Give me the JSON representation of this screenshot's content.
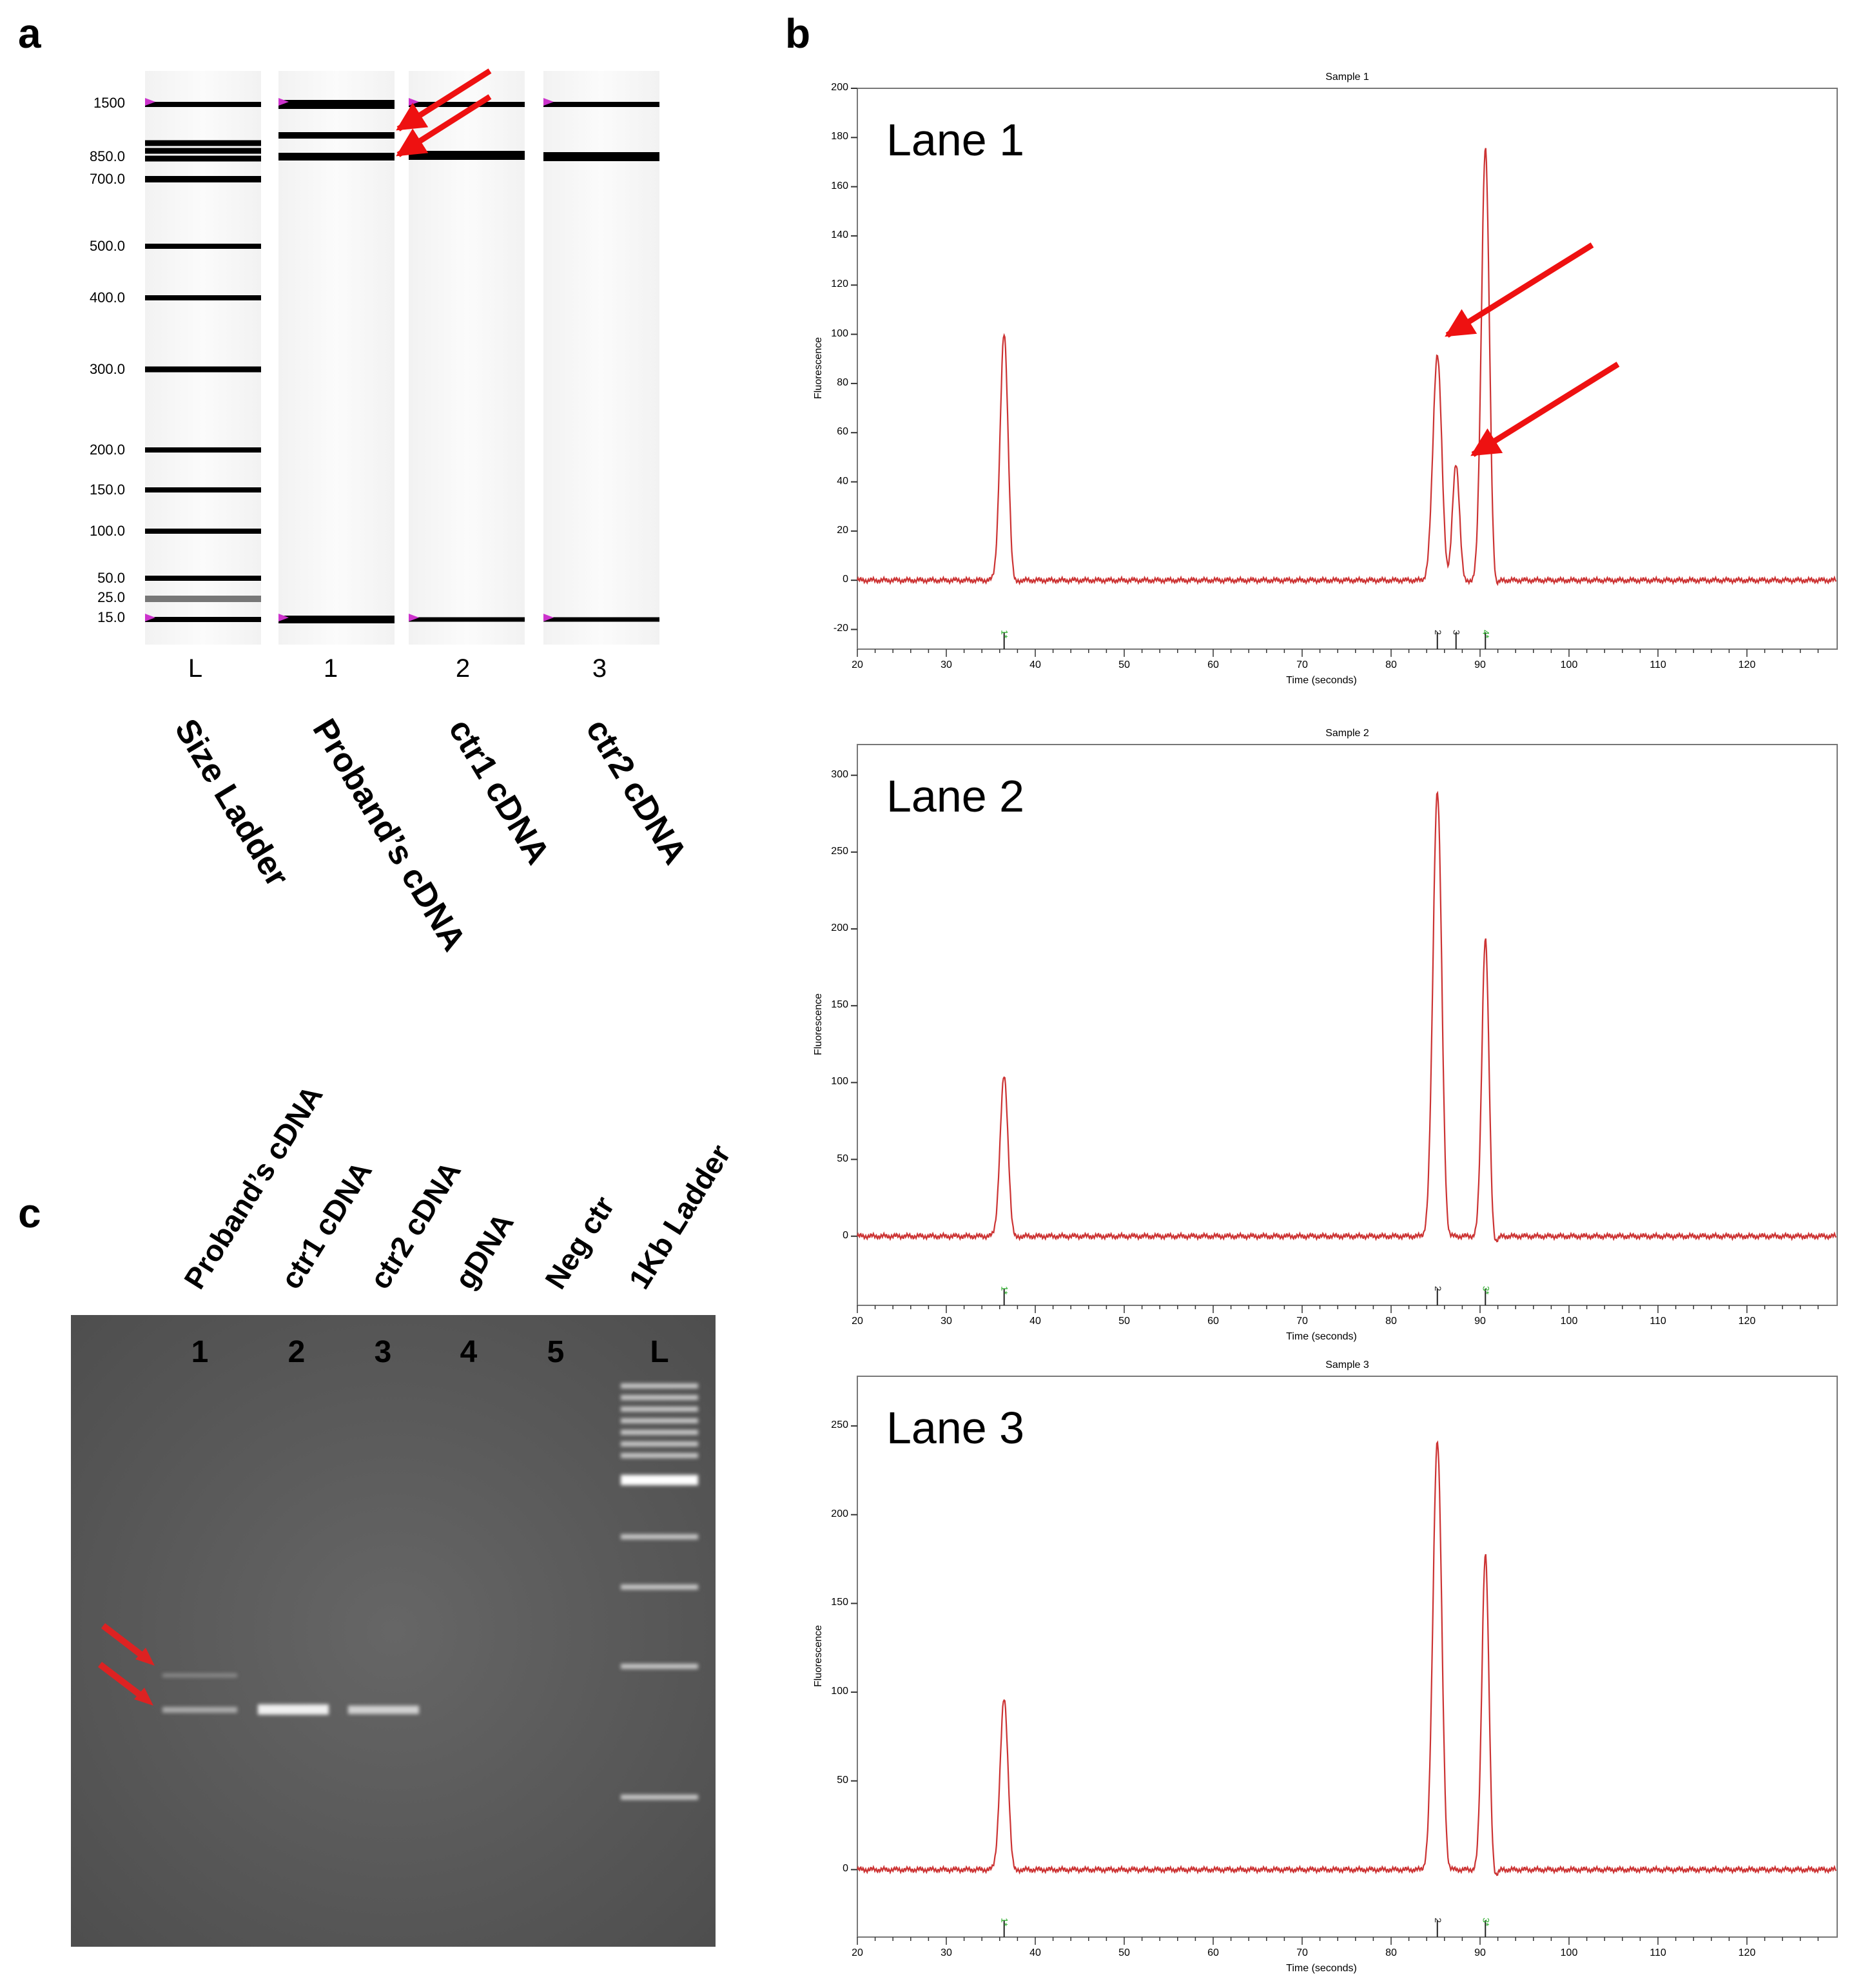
{
  "panels": {
    "a": {
      "letter": "a"
    },
    "b": {
      "letter": "b"
    },
    "c": {
      "letter": "c"
    }
  },
  "panel_a": {
    "size_labels": [
      "1500",
      "850.0",
      "700.0",
      "500.0",
      "400.0",
      "300.0",
      "200.0",
      "150.0",
      "100.0",
      "50.0",
      "25.0",
      "15.0"
    ],
    "lane_numbers": [
      "L",
      "1",
      "2",
      "3"
    ],
    "lane_names": [
      "Size Ladder",
      "Proband’s cDNA",
      "ctr1 cDNA",
      "ctr2 cDNA"
    ],
    "colors": {
      "marker": "#cc33cc",
      "arrow": "#ee1111",
      "band": "#000000"
    }
  },
  "panel_c": {
    "lane_numbers": [
      "1",
      "2",
      "3",
      "4",
      "5",
      "L"
    ],
    "lane_names": [
      "Proband’s cDNA",
      "ctr1 cDNA",
      "ctr2 cDNA",
      "gDNA",
      "Neg ctr",
      "1Kb Ladder"
    ],
    "colors": {
      "gel": "#5c5c5c",
      "arrow": "#dd2222"
    }
  },
  "panel_b": {
    "plots": [
      {
        "title": "Sample 1",
        "lane_label": "Lane 1",
        "ylabel": "Fluorescence",
        "xlabel": "Time (seconds)",
        "yticks": [
          "200",
          "180",
          "160",
          "140",
          "120",
          "100",
          "80",
          "60",
          "40",
          "20",
          "0",
          "-20"
        ],
        "xticks": [
          "20",
          "30",
          "40",
          "50",
          "60",
          "70",
          "80",
          "90",
          "100",
          "110",
          "120"
        ],
        "peak_labels": [
          "1*",
          "2",
          "3",
          "4*"
        ]
      },
      {
        "title": "Sample 2",
        "lane_label": "Lane 2",
        "ylabel": "Fluorescence",
        "xlabel": "Time (seconds)",
        "yticks": [
          "300",
          "250",
          "200",
          "150",
          "100",
          "50",
          "0"
        ],
        "xticks": [
          "20",
          "30",
          "40",
          "50",
          "60",
          "70",
          "80",
          "90",
          "100",
          "110",
          "120"
        ],
        "peak_labels": [
          "1*",
          "2",
          "3*"
        ]
      },
      {
        "title": "Sample 3",
        "lane_label": "Lane 3",
        "ylabel": "Fluorescence",
        "xlabel": "Time (seconds)",
        "yticks": [
          "250",
          "200",
          "150",
          "100",
          "50",
          "0"
        ],
        "xticks": [
          "20",
          "30",
          "40",
          "50",
          "60",
          "70",
          "80",
          "90",
          "100",
          "110",
          "120"
        ],
        "peak_labels": [
          "1*",
          "2",
          "3*"
        ]
      }
    ],
    "colors": {
      "trace": "#cc3333",
      "marker_green": "#22aa22",
      "arrow": "#ee1111"
    }
  },
  "chart_data": [
    {
      "type": "line",
      "title": "Sample 1",
      "xlabel": "Time (seconds)",
      "ylabel": "Fluorescence",
      "xlim": [
        20,
        130
      ],
      "ylim": [
        -28,
        200
      ],
      "peaks": [
        {
          "x": 36.5,
          "y": 100
        },
        {
          "x": 85.2,
          "y": 92
        },
        {
          "x": 87.3,
          "y": 47
        },
        {
          "x": 90.6,
          "y": 176
        }
      ]
    },
    {
      "type": "line",
      "title": "Sample 2",
      "xlabel": "Time (seconds)",
      "ylabel": "Fluorescence",
      "xlim": [
        20,
        130
      ],
      "ylim": [
        -45,
        320
      ],
      "peaks": [
        {
          "x": 36.5,
          "y": 104
        },
        {
          "x": 85.2,
          "y": 290
        },
        {
          "x": 90.6,
          "y": 194
        }
      ]
    },
    {
      "type": "line",
      "title": "Sample 3",
      "xlabel": "Time (seconds)",
      "ylabel": "Fluorescence",
      "xlim": [
        20,
        130
      ],
      "ylim": [
        -38,
        278
      ],
      "peaks": [
        {
          "x": 36.5,
          "y": 96
        },
        {
          "x": 85.2,
          "y": 242
        },
        {
          "x": 90.6,
          "y": 178
        }
      ]
    }
  ]
}
